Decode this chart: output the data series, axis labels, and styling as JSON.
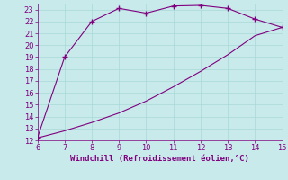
{
  "xlabel": "Windchill (Refroidissement éolien,°C)",
  "x_upper": [
    6,
    7,
    8,
    9,
    10,
    11,
    12,
    13,
    14,
    15
  ],
  "y_upper": [
    12.2,
    19.0,
    22.0,
    23.1,
    22.7,
    23.3,
    23.35,
    23.1,
    22.2,
    21.5
  ],
  "x_lower": [
    6,
    7,
    8,
    9,
    10,
    11,
    12,
    13,
    14,
    15
  ],
  "y_lower": [
    12.2,
    12.8,
    13.5,
    14.3,
    15.3,
    16.5,
    17.8,
    19.2,
    20.8,
    21.5
  ],
  "xlim": [
    6,
    15
  ],
  "ylim": [
    12,
    23.5
  ],
  "yticks": [
    12,
    13,
    14,
    15,
    16,
    17,
    18,
    19,
    20,
    21,
    22,
    23
  ],
  "xticks": [
    6,
    7,
    8,
    9,
    10,
    11,
    12,
    13,
    14,
    15
  ],
  "line_color": "#800080",
  "marker_color": "#800080",
  "bg_color": "#c8eaea",
  "grid_color": "#a8d8d8",
  "axis_label_color": "#800080",
  "tick_color": "#800080",
  "font_size_axis": 6.5,
  "font_size_tick": 6,
  "line_width": 0.8,
  "marker_size": 4
}
